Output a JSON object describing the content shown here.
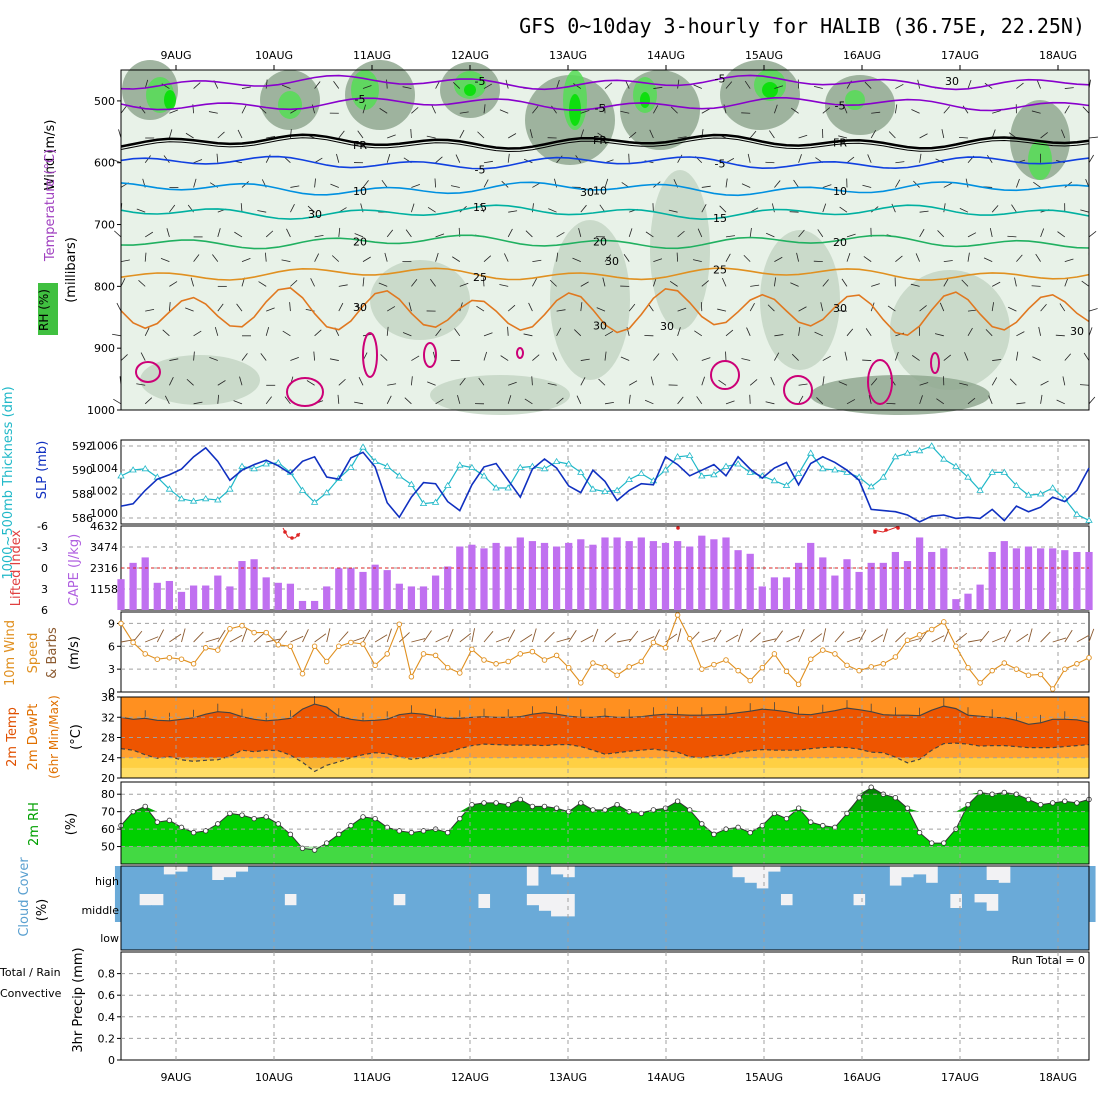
{
  "title": "GFS 0~10day 3-hourly for HALIB (36.75E, 22.25N)",
  "colors": {
    "frame": "#000000",
    "grid": "#a0a0a0",
    "rh_dark": "#90a890",
    "rh_mid": "#c4d6c4",
    "rh_light": "#e8f2e8",
    "rh_green": "#55dd55",
    "rh_bright": "#00e000",
    "temp_purple": "#8800cc",
    "temp_blue": "#1040e0",
    "temp_cyan": "#0090e0",
    "temp_teal": "#00b0a0",
    "temp_green": "#20b060",
    "temp_orange": "#e09020",
    "temp_dkorange": "#e07820",
    "temp_magenta": "#cc0077",
    "slp_line": "#1030c0",
    "thick_line": "#20b8c8",
    "cape_bar": "#c070f0",
    "li_line": "#dd2222",
    "wind_line": "#e09020",
    "temp_fill": "#ee5500",
    "dew_fill": "#ffa030",
    "rh2m_fill": "#00d000",
    "cloud_fill": "#6aaad8",
    "cloud_gap": "#f2f2f4"
  },
  "chart_data": {
    "type": "meteogram",
    "x_tick_labels": [
      "9AUG",
      "10AUG",
      "11AUG",
      "12AUG",
      "13AUG",
      "14AUG",
      "15AUG",
      "16AUG",
      "17AUG",
      "18AUG"
    ],
    "n_steps": 81,
    "panels": [
      {
        "id": "upper_air",
        "labels": {
          "wind": "Wind (m/s)",
          "temperature": "Temperature (°C)",
          "rh": "RH (%)",
          "units": "(millibars)"
        },
        "y_ticks": [
          "500",
          "600",
          "700",
          "800",
          "900",
          "1000"
        ],
        "ylim": [
          450,
          1000
        ],
        "isotherms": [
          {
            "label": "-5",
            "level": 505,
            "color": "purple"
          },
          {
            "label": "-5",
            "level": 470,
            "color": "purple"
          },
          {
            "label": "FR",
            "level": 566,
            "color": "black"
          },
          {
            "label": "-5",
            "level": 600,
            "color": "blue"
          },
          {
            "label": "10",
            "level": 642,
            "color": "cyan"
          },
          {
            "label": "15",
            "level": 680,
            "color": "teal"
          },
          {
            "label": "20",
            "level": 728,
            "color": "green"
          },
          {
            "label": "25",
            "level": 780,
            "color": "orange"
          },
          {
            "label": "30",
            "level": 840,
            "color": "dkorange"
          }
        ],
        "contour_labels": [
          "30",
          "30",
          "30",
          "30",
          "30",
          "30"
        ]
      },
      {
        "id": "slp_thickness",
        "labels": {
          "thickness": "1000~500mb Thickness (dm)",
          "slp": "SLP (mb)"
        },
        "left_ticks": [
          "592",
          "590",
          "588",
          "586"
        ],
        "right_ticks": [
          "1006",
          "1004",
          "1002",
          "1000"
        ],
        "slp_ylim": [
          999,
          1006.5
        ],
        "thick_ylim": [
          585.5,
          592.5
        ],
        "slp": [
          1000.6,
          1000.8,
          1002.0,
          1003.0,
          1003.4,
          1003.9,
          1005.0,
          1005.8,
          1004.6,
          1002.9,
          1003.8,
          1004.3,
          1004.7,
          1004.2,
          1003.5,
          1004.6,
          1005.0,
          1003.2,
          1003.0,
          1004.9,
          1005.4,
          1004.1,
          1000.9,
          999.6,
          1001.4,
          1002.7,
          1002.6,
          1001.0,
          1000.2,
          1002.5,
          1004.1,
          1004.4,
          1002.9,
          1001.4,
          1003.9,
          1004.8,
          1004.0,
          1002.4,
          1001.8,
          1003.8,
          1002.8,
          1001.1,
          1002.0,
          1002.6,
          1002.5,
          1005.0,
          1004.3,
          1003.3,
          1003.8,
          1004.3,
          1003.3,
          1005.0,
          1003.9,
          1003.1,
          1004.0,
          1004.5,
          1002.5,
          1004.4,
          1005.0,
          1004.5,
          1003.8,
          1002.9,
          1000.3,
          1000.2,
          1000.1,
          999.8,
          999.2,
          999.7,
          999.8,
          999.5,
          999.6,
          999.5,
          1000.3,
          999.3,
          1000.6,
          1000.1,
          1000.5,
          1001.4,
          1001.0,
          1002.0,
          1004.0
        ],
        "thickness": [
          589.5,
          590.0,
          590.1,
          589.4,
          588.4,
          587.6,
          587.4,
          587.6,
          587.5,
          588.4,
          590.3,
          590.1,
          590.5,
          590.6,
          589.8,
          588.3,
          587.3,
          588.1,
          589.3,
          590.2,
          591.9,
          590.7,
          590.3,
          589.5,
          588.8,
          587.2,
          587.3,
          588.7,
          590.4,
          590.2,
          589.5,
          588.5,
          588.5,
          590.2,
          590.3,
          590.1,
          590.7,
          590.5,
          589.8,
          588.4,
          588.2,
          588.3,
          589.2,
          589.7,
          589.1,
          590.0,
          591.1,
          591.2,
          589.5,
          589.6,
          590.3,
          590.5,
          589.8,
          589.5,
          589.1,
          588.7,
          589.7,
          591.4,
          590.1,
          590.0,
          589.8,
          589.4,
          588.6,
          589.4,
          591.1,
          591.4,
          591.6,
          592.0,
          590.9,
          590.3,
          589.4,
          588.3,
          589.8,
          589.8,
          588.7,
          587.9,
          588.0,
          588.5,
          587.6,
          586.3,
          585.8
        ]
      },
      {
        "id": "cape_li",
        "labels": {
          "li": "Lifted Index",
          "cape": "CAPE (J/kg)"
        },
        "left_ticks": [
          "-6",
          "-3",
          "0",
          "3",
          "6"
        ],
        "right_ticks": [
          "4632",
          "3474",
          "2316",
          "1158"
        ],
        "ylim": [
          0,
          4632
        ],
        "cape": [
          1700,
          2600,
          2900,
          1500,
          1600,
          1000,
          1350,
          1350,
          1900,
          1300,
          2700,
          2800,
          1800,
          1500,
          1450,
          500,
          500,
          1300,
          2300,
          2300,
          2100,
          2500,
          2200,
          1450,
          1300,
          1300,
          1900,
          2400,
          3500,
          3600,
          3400,
          3700,
          3500,
          4000,
          3800,
          3700,
          3500,
          3700,
          3900,
          3600,
          4000,
          4000,
          3800,
          4000,
          3800,
          3700,
          3800,
          3500,
          4100,
          3900,
          4000,
          3300,
          3100,
          1300,
          1800,
          1800,
          2600,
          3700,
          2900,
          1900,
          2800,
          2100,
          2600,
          2600,
          3200,
          2700,
          4000,
          3200,
          3400,
          600,
          900,
          1400,
          3200,
          3800,
          3400,
          3500,
          3400,
          3400,
          3300,
          3200,
          3200
        ]
      },
      {
        "id": "wind10m",
        "labels": {
          "title": "10m Wind",
          "speed": "Speed",
          "barbs": "& Barbs",
          "units": "(m/s)"
        },
        "y_ticks": [
          "9",
          "6",
          "3",
          "0"
        ],
        "ylim": [
          0,
          10.5
        ],
        "speed": [
          9.0,
          6.5,
          5.0,
          4.3,
          4.5,
          4.3,
          3.7,
          5.8,
          5.5,
          8.3,
          8.7,
          7.8,
          7.8,
          6.2,
          6.0,
          2.4,
          6.0,
          4.0,
          6.0,
          6.5,
          6.3,
          3.5,
          5.0,
          8.9,
          2.0,
          5.0,
          4.8,
          3.2,
          2.5,
          5.6,
          4.2,
          3.7,
          4.0,
          5.0,
          5.3,
          4.2,
          4.8,
          3.2,
          1.2,
          3.8,
          3.3,
          2.2,
          3.3,
          4.0,
          6.5,
          5.8,
          10.1,
          7.0,
          3.0,
          3.6,
          4.2,
          2.8,
          1.5,
          3.2,
          5.0,
          2.7,
          1.0,
          4.3,
          5.5,
          5.0,
          3.5,
          2.8,
          3.3,
          3.7,
          4.6,
          6.8,
          7.5,
          8.2,
          9.2,
          6.0,
          3.2,
          1.2,
          2.8,
          3.8,
          3.0,
          2.2,
          2.3,
          0.4,
          3.0,
          3.7,
          4.5
        ]
      },
      {
        "id": "temp2m",
        "labels": {
          "temp": "2m Temp",
          "dew": "2m DewPt",
          "minmax": "(6hr Min/Max)",
          "units": "(°C)"
        },
        "y_ticks": [
          "36",
          "32",
          "28",
          "24",
          "20"
        ],
        "ylim": [
          20,
          36
        ],
        "temp": [
          32.0,
          31.6,
          31.8,
          31.4,
          31.3,
          31.6,
          31.9,
          32.6,
          33.1,
          32.9,
          32.1,
          31.6,
          31.3,
          31.5,
          31.8,
          33.6,
          34.6,
          34.0,
          32.2,
          31.6,
          31.3,
          31.4,
          31.6,
          32.5,
          32.8,
          32.6,
          32.1,
          31.8,
          31.8,
          32.0,
          32.1,
          32.0,
          32.0,
          32.1,
          32.6,
          32.9,
          32.6,
          32.2,
          32.0,
          32.0,
          32.2,
          32.0,
          32.0,
          32.1,
          32.4,
          32.6,
          32.5,
          32.4,
          32.4,
          32.5,
          32.6,
          32.9,
          33.2,
          33.6,
          33.4,
          33.1,
          32.6,
          32.5,
          32.9,
          33.3,
          33.8,
          33.5,
          33.1,
          32.5,
          32.4,
          32.4,
          32.3,
          33.4,
          34.2,
          33.7,
          32.4,
          32.2,
          32.0,
          31.9,
          31.4,
          30.6,
          30.9,
          31.6,
          31.6,
          31.5,
          31.0
        ],
        "dewpoint": [
          25.8,
          25.5,
          24.6,
          23.9,
          24.2,
          23.6,
          23.3,
          23.5,
          23.6,
          24.3,
          25.5,
          25.2,
          25.5,
          25.4,
          24.5,
          23.1,
          21.3,
          22.5,
          23.2,
          24.0,
          24.6,
          25.0,
          24.8,
          24.2,
          23.7,
          24.0,
          24.6,
          25.0,
          25.8,
          26.4,
          26.7,
          26.6,
          26.5,
          26.5,
          26.5,
          26.4,
          26.6,
          26.6,
          26.2,
          25.5,
          24.7,
          25.0,
          25.3,
          25.5,
          25.7,
          25.4,
          25.1,
          24.2,
          24.0,
          24.4,
          24.5,
          25.1,
          25.4,
          25.6,
          25.5,
          25.5,
          25.5,
          25.8,
          26.0,
          26.1,
          26.0,
          25.7,
          25.1,
          25.0,
          24.1,
          23.0,
          23.7,
          25.5,
          26.8,
          26.9,
          26.7,
          26.3,
          26.4,
          26.4,
          26.2,
          26.0,
          26.0,
          26.0,
          26.2,
          26.4,
          26.6
        ]
      },
      {
        "id": "rh2m",
        "labels": {
          "title": "2m RH",
          "units": "(%)"
        },
        "y_ticks": [
          "80",
          "70",
          "60",
          "50"
        ],
        "ylim": [
          40,
          87
        ],
        "rh": [
          62.0,
          70.0,
          73.0,
          64.0,
          65.0,
          61.0,
          58.0,
          59.0,
          63.0,
          69.0,
          68.0,
          66.0,
          67.0,
          63.0,
          57.0,
          49.0,
          48.0,
          52.0,
          57.0,
          62.0,
          67.0,
          66.0,
          61.0,
          59.0,
          58.0,
          59.0,
          60.0,
          58.0,
          66.0,
          74.0,
          75.0,
          75.0,
          74.0,
          77.0,
          73.0,
          73.0,
          72.0,
          70.0,
          75.0,
          71.0,
          71.0,
          74.0,
          70.0,
          69.0,
          71.0,
          72.0,
          76.0,
          71.0,
          63.0,
          57.0,
          60.0,
          61.0,
          58.0,
          62.0,
          69.0,
          66.0,
          72.0,
          64.0,
          62.0,
          61.0,
          69.0,
          78.0,
          84.0,
          80.0,
          78.0,
          72.0,
          58.0,
          52.0,
          52.0,
          60.0,
          74.0,
          81.0,
          80.0,
          81.0,
          80.0,
          77.0,
          74.0,
          75.0,
          76.0,
          75.0,
          77.0
        ]
      },
      {
        "id": "cloud",
        "labels": {
          "title": "Cloud Cover",
          "units": "(%)",
          "high": "high",
          "middle": "middle",
          "low": "low"
        },
        "high": [
          100,
          100,
          100,
          100,
          70,
          80,
          100,
          100,
          50,
          60,
          80,
          100,
          100,
          100,
          100,
          100,
          100,
          100,
          100,
          100,
          100,
          100,
          100,
          100,
          100,
          100,
          100,
          100,
          100,
          100,
          100,
          100,
          100,
          100,
          30,
          100,
          70,
          60,
          100,
          100,
          100,
          100,
          100,
          100,
          100,
          100,
          100,
          100,
          100,
          100,
          100,
          60,
          40,
          20,
          80,
          100,
          100,
          100,
          100,
          100,
          100,
          100,
          100,
          100,
          30,
          60,
          70,
          40,
          100,
          100,
          100,
          100,
          50,
          40,
          100,
          100,
          100,
          100,
          100,
          100,
          100
        ],
        "middle": [
          100,
          100,
          60,
          60,
          100,
          100,
          100,
          100,
          100,
          100,
          100,
          100,
          100,
          100,
          60,
          100,
          100,
          100,
          100,
          100,
          100,
          100,
          100,
          60,
          100,
          100,
          100,
          100,
          100,
          100,
          50,
          100,
          100,
          100,
          60,
          40,
          20,
          20,
          100,
          100,
          100,
          100,
          100,
          100,
          100,
          100,
          100,
          100,
          100,
          100,
          100,
          100,
          100,
          100,
          100,
          60,
          100,
          100,
          100,
          100,
          100,
          60,
          100,
          100,
          100,
          100,
          100,
          100,
          100,
          50,
          100,
          70,
          40,
          100,
          100,
          100,
          100,
          100,
          100,
          100,
          100
        ]
      },
      {
        "id": "precip",
        "labels": {
          "title": "3hr Precip (mm)",
          "total_rain": "Total / Rain",
          "convective": "Convective",
          "run_total": "Run Total = 0"
        },
        "y_ticks": [
          "0.8",
          "0.6",
          "0.4",
          "0.2",
          "0"
        ],
        "ylim": [
          0,
          1
        ],
        "run_total": 0
      }
    ]
  }
}
